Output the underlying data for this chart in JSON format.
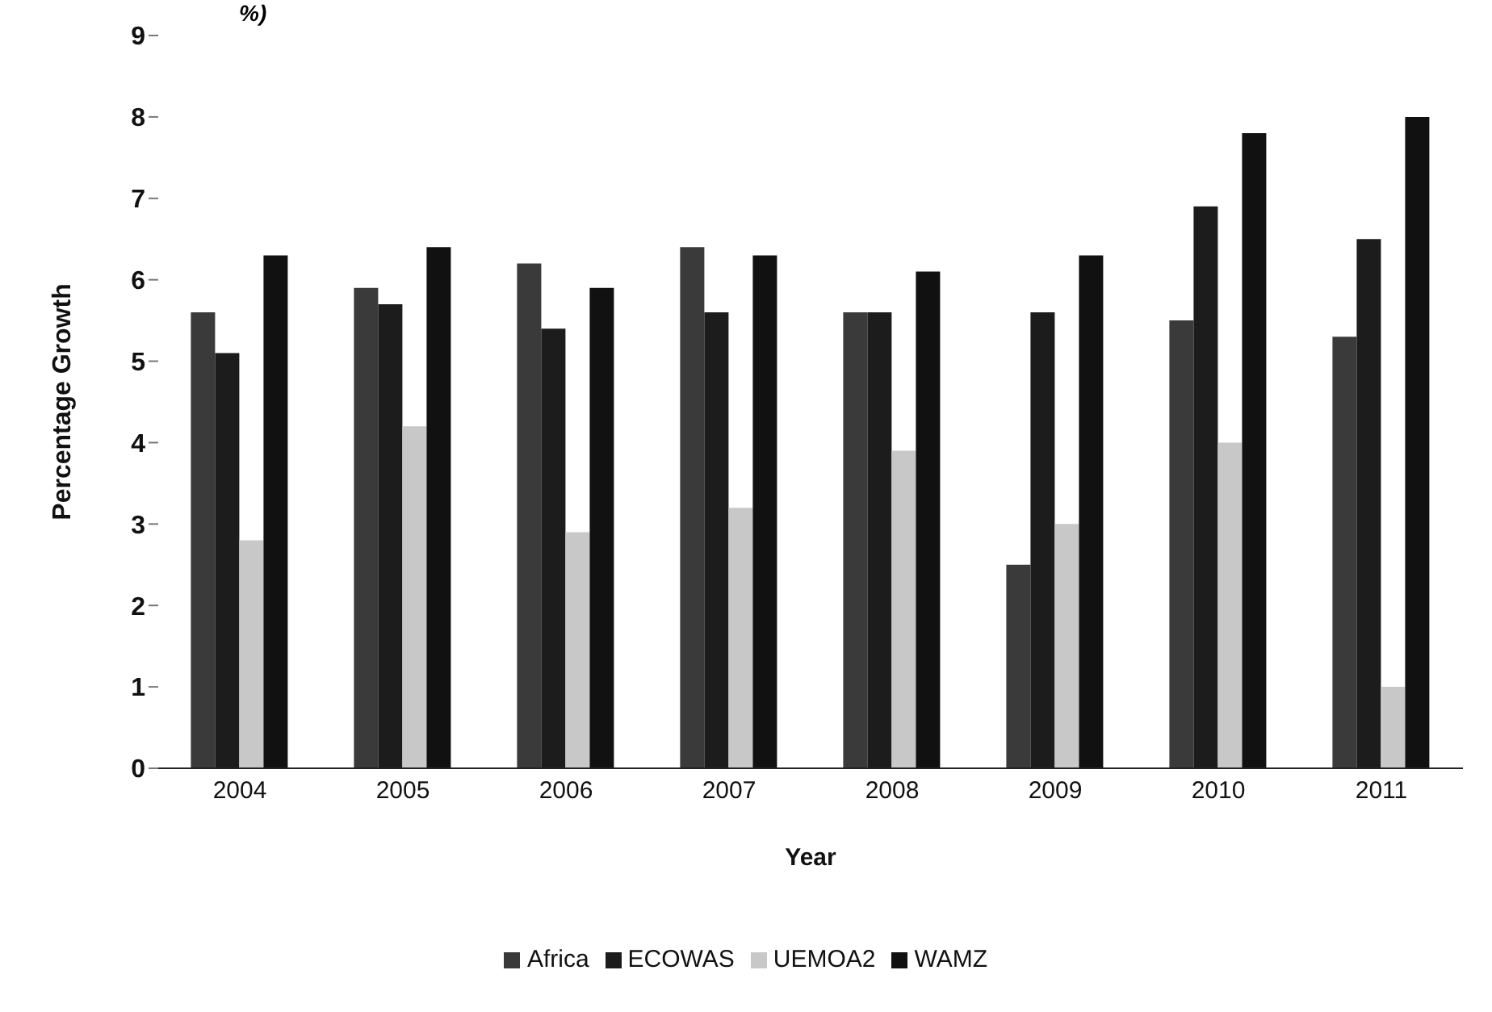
{
  "chart_data": {
    "type": "bar",
    "title": "%)",
    "xlabel": "Year",
    "ylabel": "Percentage Growth",
    "categories": [
      "2004",
      "2005",
      "2006",
      "2007",
      "2008",
      "2009",
      "2010",
      "2011"
    ],
    "series": [
      {
        "name": "Africa",
        "color": "#3a3a3a",
        "values": [
          5.6,
          5.9,
          6.2,
          6.4,
          5.6,
          2.5,
          5.5,
          5.3
        ]
      },
      {
        "name": "ECOWAS",
        "color": "#1c1c1c",
        "values": [
          5.1,
          5.7,
          5.4,
          5.6,
          5.6,
          5.6,
          6.9,
          6.5
        ]
      },
      {
        "name": "UEMOA2",
        "color": "#c8c8c8",
        "values": [
          2.8,
          4.2,
          2.9,
          3.2,
          3.9,
          3.0,
          4.0,
          1.0
        ]
      },
      {
        "name": "WAMZ",
        "color": "#111111",
        "values": [
          6.3,
          6.4,
          5.9,
          6.3,
          6.1,
          6.3,
          7.8,
          8.0
        ]
      }
    ],
    "ylim": [
      0,
      9
    ],
    "yticks": [
      0,
      1,
      2,
      3,
      4,
      5,
      6,
      7,
      8,
      9
    ],
    "grid": false,
    "legend": "bottom"
  }
}
